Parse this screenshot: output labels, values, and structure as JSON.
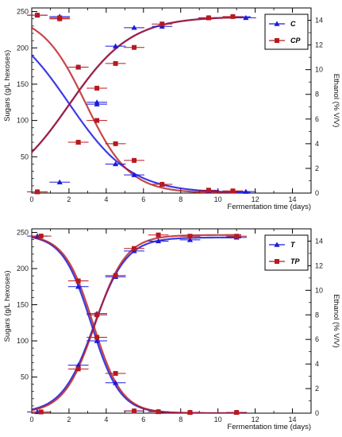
{
  "chart_data": [
    {
      "type": "line",
      "title": "",
      "xlabel": "Fermentation time (days)",
      "ylabel": "Sugars (g/L hexoses)",
      "y2label": "Ethanol (% V/V)",
      "xlim": [
        0,
        15
      ],
      "ylim": [
        0,
        255
      ],
      "y2lim": [
        0,
        15
      ],
      "xticks": [
        "0",
        "2",
        "4",
        "6",
        "8",
        "10",
        "12",
        "14"
      ],
      "yticks": [
        "50",
        "100",
        "150",
        "200",
        "250"
      ],
      "y2ticks": [
        "0",
        "2",
        "4",
        "6",
        "8",
        "10",
        "12",
        "14"
      ],
      "grid": false,
      "legend_position": "top-right",
      "series": [
        {
          "name": "C",
          "color": "#1a1adf",
          "marker": "triangle",
          "sugar": {
            "x": [
              0.3,
              1.5,
              2.5,
              3.5,
              4.5,
              5.5,
              7.0,
              9.5,
              11.5
            ],
            "y": [
              245,
              15,
              70,
              125,
              40,
              25,
              12,
              3,
              2
            ]
          },
          "ethanol": {
            "x": [
              0.3,
              1.5,
              2.5,
              3.5,
              4.5,
              5.5,
              7.0,
              9.5,
              11.5
            ],
            "y": [
              0.1,
              14.3,
              10.2,
              7.2,
              11.9,
              13.4,
              13.5,
              14.2,
              14.2
            ]
          }
        },
        {
          "name": "CP",
          "color": "#b8191d",
          "marker": "square",
          "sugar": {
            "x": [
              0.3,
              1.5,
              2.5,
              3.5,
              4.5,
              5.5,
              7.0,
              9.5,
              10.8
            ],
            "y": [
              245,
              240,
              70,
              100,
              68,
              45,
              12,
              4,
              3
            ]
          },
          "ethanol": {
            "x": [
              0.3,
              1.5,
              2.5,
              3.5,
              4.5,
              5.5,
              7.0,
              9.5,
              10.8
            ],
            "y": [
              0.1,
              14.2,
              10.2,
              8.5,
              10.5,
              11.8,
              13.7,
              14.2,
              14.3
            ]
          }
        }
      ]
    },
    {
      "type": "line",
      "title": "",
      "xlabel": "Fermentation time (days)",
      "ylabel": "Sugars (g/L hexoses)",
      "y2label": "Ethanol (% V/V)",
      "xlim": [
        0,
        15
      ],
      "ylim": [
        0,
        255
      ],
      "y2lim": [
        0,
        15
      ],
      "xticks": [
        "0",
        "2",
        "4",
        "6",
        "8",
        "10",
        "12",
        "14"
      ],
      "yticks": [
        "50",
        "100",
        "150",
        "200",
        "250"
      ],
      "y2ticks": [
        "0",
        "2",
        "4",
        "6",
        "8",
        "10",
        "12",
        "14"
      ],
      "grid": false,
      "legend_position": "top-right",
      "series": [
        {
          "name": "T",
          "color": "#1a1adf",
          "marker": "triangle",
          "sugar": {
            "x": [
              0.3,
              2.5,
              3.5,
              4.5,
              5.5,
              6.8,
              8.5,
              11.0
            ],
            "y": [
              245,
              175,
              100,
              42,
              3,
              2,
              1,
              1
            ]
          },
          "ethanol": {
            "x": [
              0.3,
              2.5,
              3.5,
              4.5,
              5.5,
              6.8,
              8.5,
              11.0
            ],
            "y": [
              0.1,
              3.9,
              8.1,
              11.1,
              13.2,
              14.0,
              14.1,
              14.3
            ]
          }
        },
        {
          "name": "TP",
          "color": "#b8191d",
          "marker": "square",
          "sugar": {
            "x": [
              0.5,
              2.5,
              3.5,
              4.5,
              5.5,
              6.8,
              8.5,
              11.0
            ],
            "y": [
              245,
              183,
              105,
              55,
              3,
              2,
              1,
              1
            ]
          },
          "ethanol": {
            "x": [
              0.5,
              2.5,
              3.5,
              4.5,
              5.5,
              6.8,
              8.5,
              11.0
            ],
            "y": [
              0.1,
              3.6,
              8.0,
              11.2,
              13.4,
              14.5,
              14.4,
              14.4
            ]
          }
        }
      ]
    }
  ]
}
